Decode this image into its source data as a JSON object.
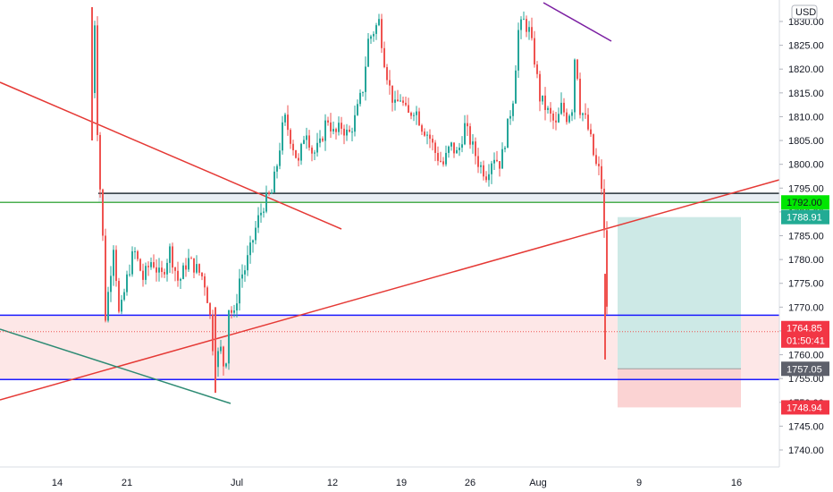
{
  "chart_data": {
    "type": "candlestick",
    "currency": "USD",
    "y_ticks": [
      1830,
      1825,
      1820,
      1815,
      1810,
      1805,
      1800,
      1795,
      1790,
      1785,
      1780,
      1775,
      1770,
      1765,
      1760,
      1755,
      1750,
      1745,
      1740
    ],
    "y_tick_labels": [
      "1830.00",
      "1825.00",
      "1820.00",
      "1815.00",
      "1810.00",
      "1805.00",
      "1800.00",
      "1795.00",
      "1790.00",
      "1785.00",
      "1780.00",
      "1775.00",
      "1770.00",
      "1765.00",
      "1760.00",
      "1755.00",
      "1750.00",
      "1745.00",
      "1740.00"
    ],
    "x_tick_labels": [
      "14",
      "21",
      "Jul",
      "12",
      "19",
      "26",
      "Aug",
      "9",
      "16"
    ],
    "ylim": [
      1737,
      1832
    ],
    "price_labels": {
      "last": "1764.85",
      "countdown": "01:50:41",
      "resistance_line": "1792.00",
      "take_profit": "1788.91",
      "entry": "1757.05",
      "stop_loss": "1748.94"
    },
    "price_levels": {
      "last": 1764.85,
      "resistance_line": 1792.0,
      "take_profit": 1788.91,
      "entry": 1757.05,
      "stop_loss": 1748.94,
      "blue_upper": 1768.3,
      "blue_lower": 1754.8,
      "dark_line": 1793.9
    },
    "colors": {
      "up": "#26a69a",
      "down": "#ef5350",
      "green_line": "#4caf50",
      "blue_line": "#1a1aff",
      "red_line": "#e53935",
      "purple_line": "#7b1fa2",
      "teal_line": "#2e8b74",
      "tp_zone": "#cde9e6",
      "sl_zone": "#fbd3d3"
    }
  }
}
